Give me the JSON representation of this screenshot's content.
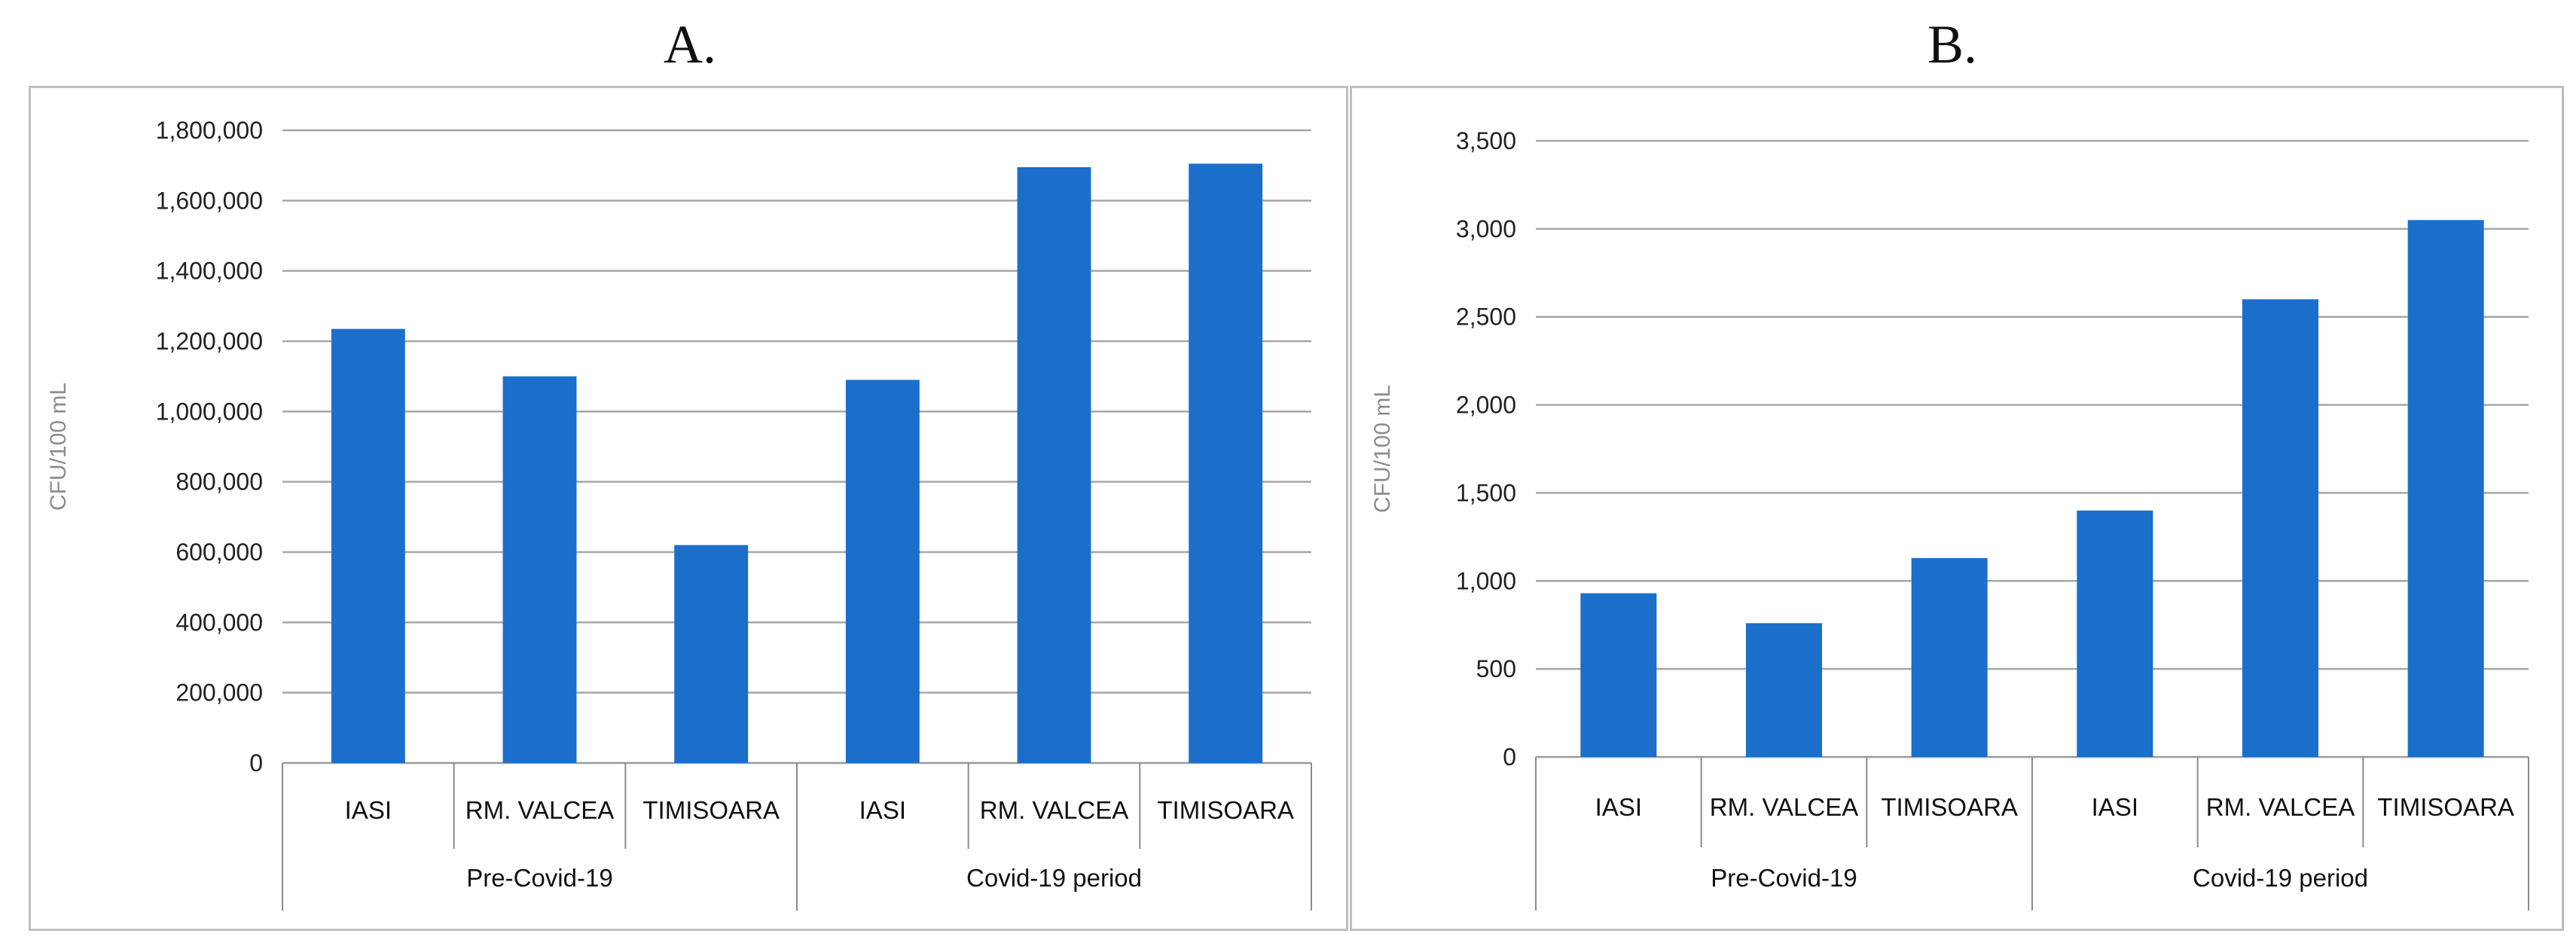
{
  "chart_data": [
    {
      "panel_label": "A.",
      "type": "bar",
      "ylabel": "CFU/100 mL",
      "ylim": [
        0,
        1800000
      ],
      "yticks": [
        0,
        200000,
        400000,
        600000,
        800000,
        1000000,
        1200000,
        1400000,
        1600000,
        1800000
      ],
      "ytick_labels": [
        "0",
        "200,000",
        "400,000",
        "600,000",
        "800,000",
        "1,000,000",
        "1,200,000",
        "1,400,000",
        "1,600,000",
        "1,800,000"
      ],
      "categories": [
        "IASI",
        "RM. VALCEA",
        "TIMISOARA",
        "IASI",
        "RM. VALCEA",
        "TIMISOARA"
      ],
      "groups": [
        {
          "label": "Pre-Covid-19",
          "count": 3
        },
        {
          "label": "Covid-19 period",
          "count": 3
        }
      ],
      "values": [
        1235000,
        1100000,
        620000,
        1090000,
        1695000,
        1705000
      ],
      "bar_color": "#1b6fcb",
      "grid": true,
      "legend": false
    },
    {
      "panel_label": "B.",
      "type": "bar",
      "ylabel": "CFU/100 mL",
      "ylim": [
        0,
        3500
      ],
      "yticks": [
        0,
        500,
        1000,
        1500,
        2000,
        2500,
        3000,
        3500
      ],
      "ytick_labels": [
        "0",
        "500",
        "1,000",
        "1,500",
        "2,000",
        "2,500",
        "3,000",
        "3,500"
      ],
      "categories": [
        "IASI",
        "RM. VALCEA",
        "TIMISOARA",
        "IASI",
        "RM. VALCEA",
        "TIMISOARA"
      ],
      "groups": [
        {
          "label": "Pre-Covid-19",
          "count": 3
        },
        {
          "label": "Covid-19 period",
          "count": 3
        }
      ],
      "values": [
        930,
        760,
        1130,
        1400,
        2600,
        3050
      ],
      "bar_color": "#1b6fcb",
      "grid": true,
      "legend": false
    }
  ]
}
